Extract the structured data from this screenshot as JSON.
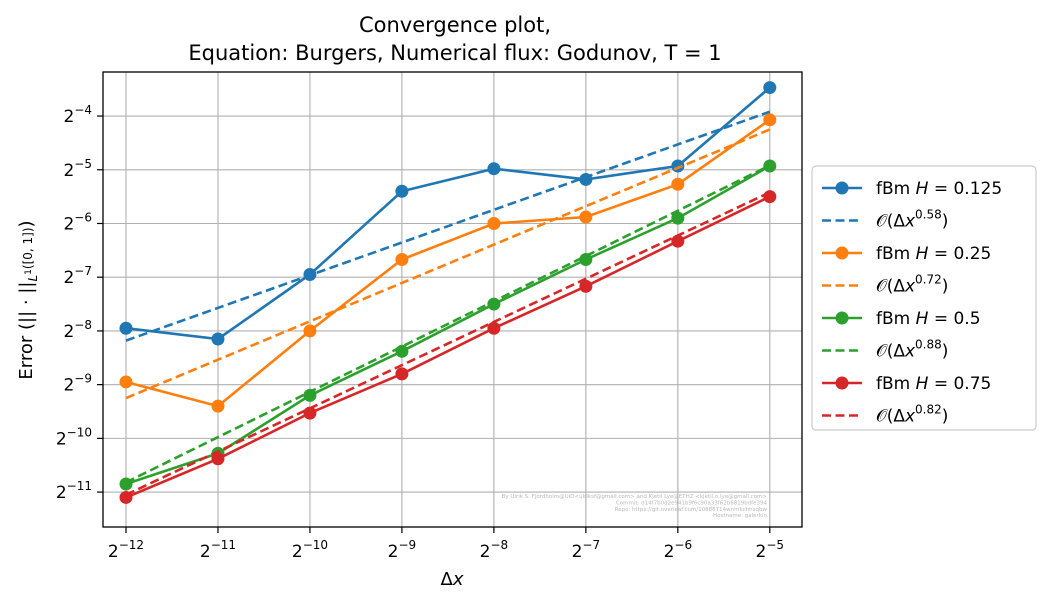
{
  "chart_data": {
    "type": "line",
    "title_line1": "Convergence plot,",
    "title_line2": "Equation: Burgers, Numerical flux: Godunov, T = 1",
    "xlabel": "Δx",
    "ylabel": "Error (|| · ||L¹([0, 1]))",
    "x_scale": "log2",
    "y_scale": "log2",
    "x_exponents": [
      -12,
      -11,
      -10,
      -9,
      -8,
      -7,
      -6,
      -5
    ],
    "xlim_exponents": [
      -12.25,
      -4.65
    ],
    "ylim_exponents": [
      -11.65,
      -3.18
    ],
    "y_tick_exponents": [
      -11,
      -10,
      -9,
      -8,
      -7,
      -6,
      -5,
      -4
    ],
    "grid": true,
    "legend_placement": "outside-right",
    "series": [
      {
        "name": "fBm H = 0.125",
        "style": "solid-marker",
        "color": "#1f77b4",
        "y_exponents": [
          -7.95,
          -8.15,
          -6.95,
          -5.4,
          -4.98,
          -5.18,
          -4.93,
          -3.47
        ]
      },
      {
        "name": "O(Δx^0.58)",
        "style": "dashed",
        "color": "#1f77b4",
        "fit_exponents": [
          -8.18,
          -3.92
        ]
      },
      {
        "name": "fBm H = 0.25",
        "style": "solid-marker",
        "color": "#ff7f0e",
        "y_exponents": [
          -8.95,
          -9.4,
          -8.0,
          -6.67,
          -6.0,
          -5.88,
          -5.27,
          -4.07
        ]
      },
      {
        "name": "O(Δx^0.72)",
        "style": "dashed",
        "color": "#ff7f0e",
        "fit_exponents": [
          -9.25,
          -4.25
        ]
      },
      {
        "name": "fBm H = 0.5",
        "style": "solid-marker",
        "color": "#2ca02c",
        "y_exponents": [
          -10.85,
          -10.28,
          -9.2,
          -8.38,
          -7.5,
          -6.67,
          -5.9,
          -4.93
        ]
      },
      {
        "name": "O(Δx^0.88)",
        "style": "dashed",
        "color": "#2ca02c",
        "fit_exponents": [
          -10.82,
          -4.92
        ]
      },
      {
        "name": "fBm H = 0.75",
        "style": "solid-marker",
        "color": "#d62728",
        "y_exponents": [
          -11.1,
          -10.38,
          -9.53,
          -8.8,
          -7.95,
          -7.17,
          -6.33,
          -5.5
        ]
      },
      {
        "name": "O(Δx^0.82)",
        "style": "dashed",
        "color": "#d62728",
        "fit_exponents": [
          -11.05,
          -5.42
        ]
      }
    ],
    "legend": [
      {
        "label": "fBm H = 0.125",
        "series": 0
      },
      {
        "label": "O(Δx^0.58)",
        "series": 1
      },
      {
        "label": "fBm H = 0.25",
        "series": 2
      },
      {
        "label": "O(Δx^0.72)",
        "series": 3
      },
      {
        "label": "fBm H = 0.5",
        "series": 4
      },
      {
        "label": "O(Δx^0.88)",
        "series": 5
      },
      {
        "label": "fBm H = 0.75",
        "series": 6
      },
      {
        "label": "O(Δx^0.82)",
        "series": 7
      }
    ],
    "legend_text": {
      "fbm_prefix": "fBm ",
      "h_var": "H",
      "equals": " = ",
      "h_values": [
        "0.125",
        "0.25",
        "0.5",
        "0.75"
      ],
      "big_o": "𝒪",
      "paren_open": "(Δ",
      "x_var": "x",
      "paren_close": ")",
      "rates": [
        "0.58",
        "0.72",
        "0.88",
        "0.82"
      ]
    },
    "watermark_lines": [
      "By Ulrik S. Fjordholm@UiO<ulriksf@gmail.com> and Kjetil Lye@ETHZ <kjetil.o.lye@gmail.com>",
      "Commit: d14f7b0d2e941b9f6c90a33f62b6819bdfe394",
      "Repo: https://git.overleaf.com/10886714wnmkchhsqbw",
      "Hostname: galerkin"
    ]
  }
}
